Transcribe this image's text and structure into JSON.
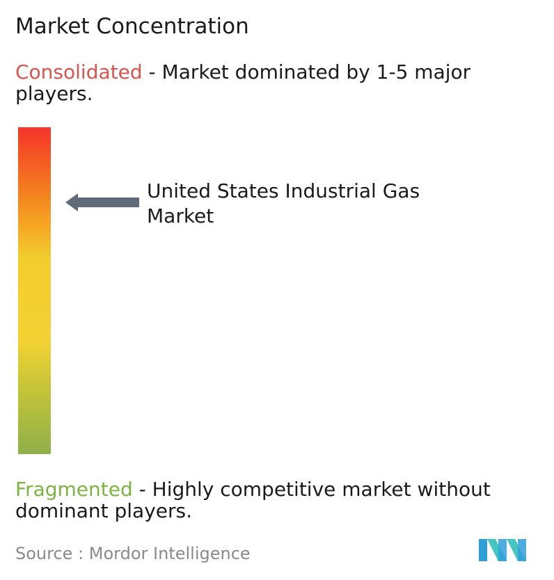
{
  "chart_data": {
    "type": "gradient-scale",
    "title": "Market Concentration",
    "scale_top": {
      "label": "Consolidated",
      "description": " - Market dominated by 1-5 major players.",
      "color": "#d9534f"
    },
    "scale_bottom": {
      "label": "Fragmented",
      "description": " - Highly competitive market without dominant players.",
      "color": "#7cb342"
    },
    "marker": {
      "label": "United States Industrial Gas Market",
      "position_fraction_from_top": 0.23
    },
    "gradient_colors": [
      "#f5332a",
      "#f4781f",
      "#f5a623",
      "#f2cd2e",
      "#f4d233",
      "#bfc23a",
      "#8fb04a"
    ],
    "source": "Source :  Mordor Intelligence"
  }
}
